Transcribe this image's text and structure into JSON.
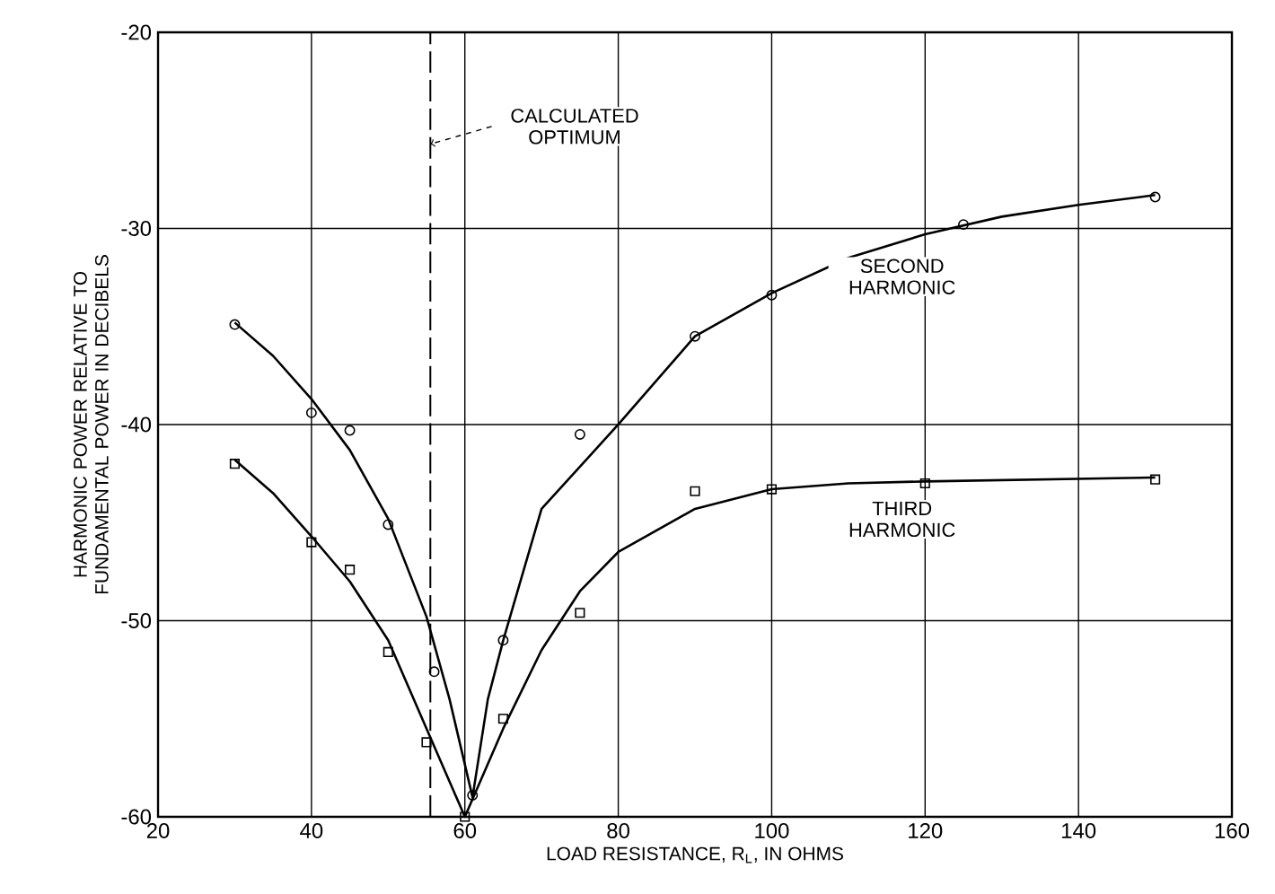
{
  "chart_data": {
    "type": "scatter",
    "xlabel": "LOAD RESISTANCE, R$_{L}$, IN OHMS",
    "ylabel": "HARMONIC POWER RELATIVE TO FUNDAMENTAL POWER IN DECIBELS",
    "xlim": [
      20,
      160
    ],
    "xticks": [
      20,
      40,
      60,
      80,
      100,
      120,
      140,
      160
    ],
    "ylim": [
      -60,
      -20
    ],
    "yticks": [
      -60,
      -50,
      -40,
      -30,
      -20
    ],
    "grid": true,
    "series": [
      {
        "name": "SECOND HARMONIC",
        "color": "#000000",
        "marker": "circle",
        "x": [
          30,
          40,
          45,
          50,
          56,
          61,
          65,
          75,
          90,
          100,
          125,
          150
        ],
        "values": [
          -34.9,
          -39.4,
          -40.3,
          -45.1,
          -52.6,
          -58.9,
          -51.0,
          -40.5,
          -35.5,
          -33.4,
          -29.8,
          -28.4
        ]
      },
      {
        "name": "THIRD HARMONIC",
        "color": "#000000",
        "marker": "square",
        "x": [
          30,
          40,
          45,
          50,
          55,
          60,
          65,
          75,
          90,
          100,
          120,
          150
        ],
        "values": [
          -42.0,
          -46.0,
          -47.4,
          -51.6,
          -56.2,
          -60.0,
          -55.0,
          -49.6,
          -43.4,
          -43.3,
          -43.0,
          -42.8
        ]
      },
      {
        "type": "line",
        "color": "#000000",
        "x": [
          30,
          35,
          40,
          45,
          50,
          55,
          58,
          61,
          63,
          65,
          70,
          80,
          90,
          100,
          110,
          120,
          130,
          140,
          150
        ],
        "values": [
          -34.8,
          -36.5,
          -38.7,
          -41.3,
          -44.8,
          -49.8,
          -54.0,
          -59.0,
          -54.0,
          -51.0,
          -44.3,
          -40.0,
          -35.5,
          -33.3,
          -31.5,
          -30.3,
          -29.4,
          -28.8,
          -28.3
        ]
      },
      {
        "type": "line",
        "color": "#000000",
        "x": [
          30,
          35,
          40,
          45,
          50,
          55,
          60,
          65,
          70,
          75,
          80,
          90,
          100,
          110,
          120,
          150
        ],
        "values": [
          -41.8,
          -43.5,
          -45.7,
          -48.0,
          -51.0,
          -55.5,
          -60.0,
          -55.5,
          -51.5,
          -48.5,
          -46.5,
          -44.3,
          -43.3,
          -43.0,
          -42.9,
          -42.7
        ]
      }
    ],
    "ref_lines": [
      {
        "axis": "x",
        "value": 55.5,
        "label": "CALCULATED OPTIMUM",
        "line_style": "dashed"
      }
    ]
  }
}
